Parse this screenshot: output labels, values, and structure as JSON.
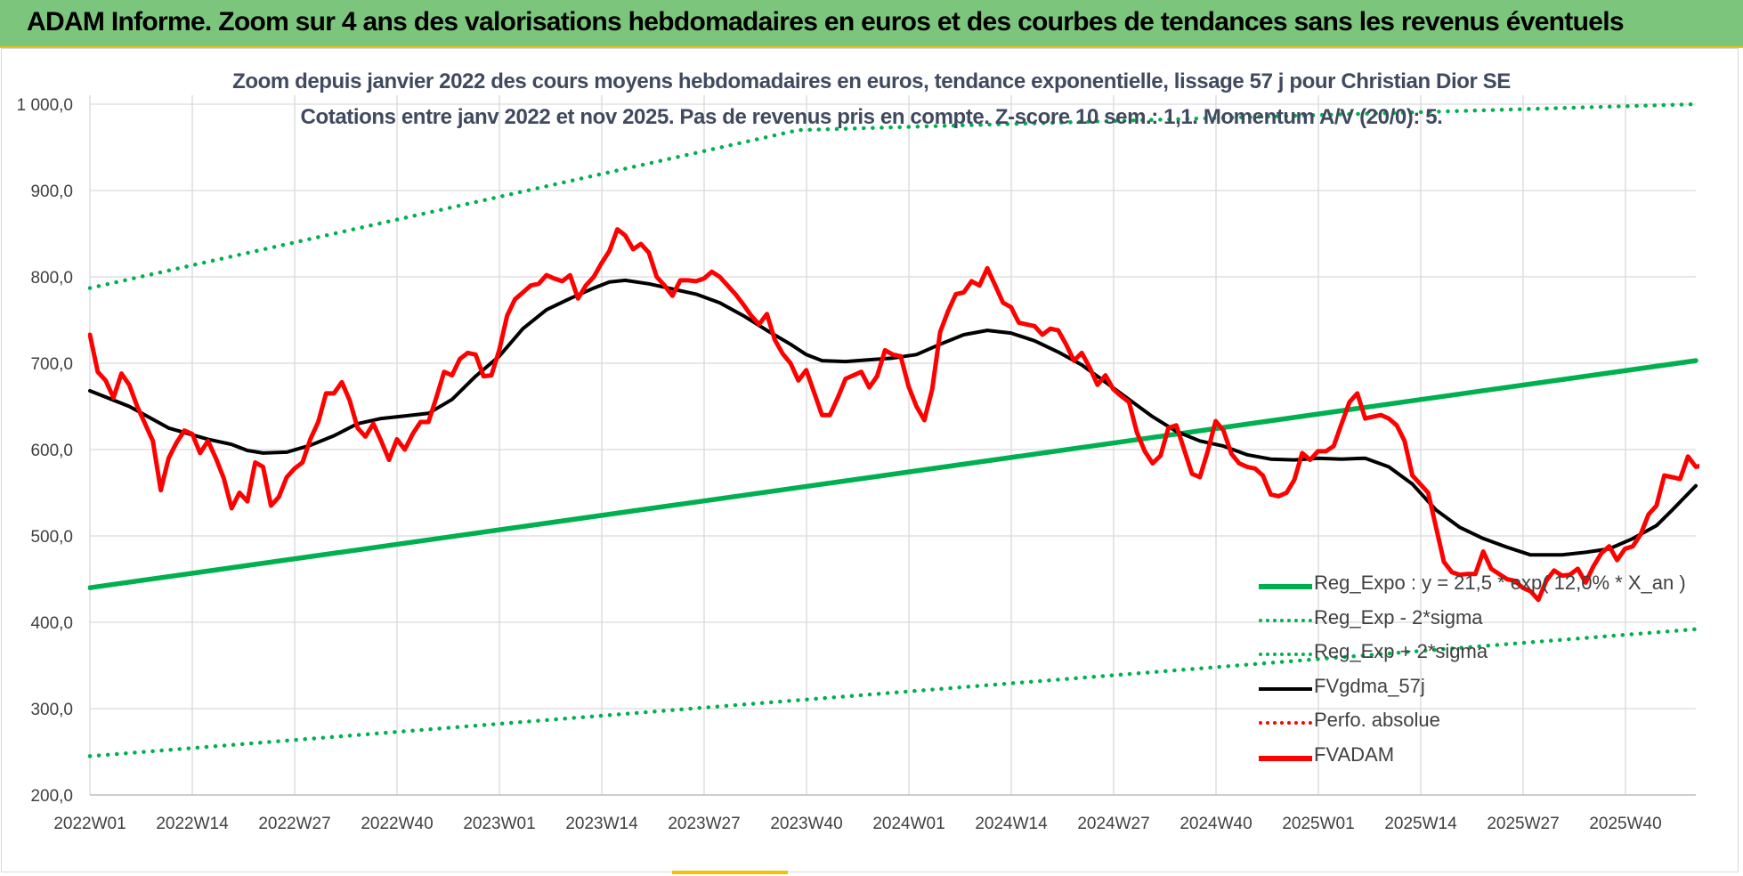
{
  "header": {
    "banner_title": "ADAM Informe. Zoom sur 4 ans des valorisations hebdomadaires en euros et des courbes de tendances sans les revenus éventuels"
  },
  "chart_data": {
    "type": "line",
    "title": "Zoom depuis janvier 2022 des cours moyens hebdomadaires en euros, tendance exponentielle, lissage 57 j pour Christian Dior SE",
    "subtitle": "Cotations entre janv 2022 et nov 2025. Pas de revenus pris en compte. Z-score 10 sem.: 1,1. Momentum A/V (20/0): 5.",
    "xlabel": "",
    "ylabel": "",
    "ylim": [
      200,
      1000
    ],
    "y_ticks": [
      "200,0",
      "300,0",
      "400,0",
      "500,0",
      "600,0",
      "700,0",
      "800,0",
      "900,0",
      "1 000,0"
    ],
    "x_tick_labels": [
      "2022W01",
      "2022W14",
      "2022W27",
      "2022W40",
      "2023W01",
      "2023W14",
      "2023W27",
      "2023W40",
      "2024W01",
      "2024W14",
      "2024W27",
      "2024W40",
      "2025W01",
      "2025W14",
      "2025W27",
      "2025W40"
    ],
    "x_range_weeks": [
      0,
      204
    ],
    "grid": true,
    "legend_position": "bottom-right",
    "series": [
      {
        "name": "Reg_Expo : y = 21,5 * exp( 12,0% *  X_an )",
        "color": "#00b050",
        "style": "solid",
        "points": [
          [
            0,
            440
          ],
          [
            204,
            703
          ]
        ]
      },
      {
        "name": "Reg_Exp - 2*sigma",
        "color": "#00b050",
        "style": "dotted",
        "points": [
          [
            0,
            245
          ],
          [
            204,
            392
          ]
        ]
      },
      {
        "name": "Reg_Exp + 2*sigma",
        "color": "#00b050",
        "style": "dotted",
        "points": [
          [
            0,
            787
          ],
          [
            90,
            970
          ],
          [
            204,
            1000
          ]
        ]
      },
      {
        "name": "FVgdma_57j",
        "color": "#000000",
        "style": "solid",
        "points": [
          [
            0,
            668
          ],
          [
            5,
            650
          ],
          [
            10,
            625
          ],
          [
            15,
            612
          ],
          [
            18,
            606
          ],
          [
            20,
            599
          ],
          [
            22,
            596
          ],
          [
            25,
            597
          ],
          [
            28,
            605
          ],
          [
            31,
            616
          ],
          [
            34,
            630
          ],
          [
            37,
            636
          ],
          [
            40,
            639
          ],
          [
            43,
            642
          ],
          [
            46,
            658
          ],
          [
            49,
            685
          ],
          [
            52,
            708
          ],
          [
            55,
            740
          ],
          [
            58,
            762
          ],
          [
            61,
            775
          ],
          [
            64,
            787
          ],
          [
            66,
            794
          ],
          [
            68,
            796
          ],
          [
            71,
            792
          ],
          [
            74,
            786
          ],
          [
            77,
            780
          ],
          [
            80,
            770
          ],
          [
            83,
            755
          ],
          [
            86,
            738
          ],
          [
            89,
            722
          ],
          [
            91,
            710
          ],
          [
            93,
            703
          ],
          [
            96,
            702
          ],
          [
            99,
            704
          ],
          [
            102,
            706
          ],
          [
            105,
            710
          ],
          [
            108,
            722
          ],
          [
            111,
            733
          ],
          [
            114,
            738
          ],
          [
            117,
            735
          ],
          [
            120,
            726
          ],
          [
            123,
            713
          ],
          [
            126,
            698
          ],
          [
            129,
            678
          ],
          [
            132,
            658
          ],
          [
            135,
            638
          ],
          [
            138,
            621
          ],
          [
            141,
            610
          ],
          [
            144,
            604
          ],
          [
            147,
            594
          ],
          [
            150,
            589
          ],
          [
            153,
            588
          ],
          [
            156,
            590
          ],
          [
            159,
            589
          ],
          [
            162,
            590
          ],
          [
            165,
            580
          ],
          [
            168,
            560
          ],
          [
            171,
            530
          ],
          [
            174,
            510
          ],
          [
            177,
            497
          ],
          [
            180,
            487
          ],
          [
            183,
            478
          ],
          [
            187,
            478
          ],
          [
            190,
            481
          ],
          [
            193,
            485
          ],
          [
            196,
            497
          ],
          [
            199,
            512
          ],
          [
            201,
            530
          ],
          [
            204,
            558
          ]
        ]
      },
      {
        "name": "Perfo. absolue",
        "color": "#ff0000",
        "style": "dotted",
        "points": []
      },
      {
        "name": "FVADAM",
        "color": "#ff0000",
        "style": "solid",
        "points": [
          [
            0,
            733
          ],
          [
            1,
            690
          ],
          [
            2,
            680
          ],
          [
            3,
            660
          ],
          [
            4,
            688
          ],
          [
            5,
            675
          ],
          [
            6,
            650
          ],
          [
            7,
            630
          ],
          [
            8,
            610
          ],
          [
            9,
            553
          ],
          [
            10,
            590
          ],
          [
            11,
            608
          ],
          [
            12,
            622
          ],
          [
            13,
            618
          ],
          [
            14,
            596
          ],
          [
            15,
            610
          ],
          [
            16,
            590
          ],
          [
            17,
            567
          ],
          [
            18,
            532
          ],
          [
            19,
            550
          ],
          [
            20,
            540
          ],
          [
            21,
            585
          ],
          [
            22,
            580
          ],
          [
            23,
            535
          ],
          [
            24,
            545
          ],
          [
            25,
            568
          ],
          [
            26,
            578
          ],
          [
            27,
            585
          ],
          [
            28,
            612
          ],
          [
            29,
            632
          ],
          [
            30,
            665
          ],
          [
            31,
            665
          ],
          [
            32,
            678
          ],
          [
            33,
            657
          ],
          [
            34,
            625
          ],
          [
            35,
            615
          ],
          [
            36,
            630
          ],
          [
            37,
            610
          ],
          [
            38,
            588
          ],
          [
            39,
            612
          ],
          [
            40,
            600
          ],
          [
            41,
            618
          ],
          [
            42,
            632
          ],
          [
            43,
            632
          ],
          [
            44,
            660
          ],
          [
            45,
            690
          ],
          [
            46,
            686
          ],
          [
            47,
            705
          ],
          [
            48,
            712
          ],
          [
            49,
            710
          ],
          [
            50,
            685
          ],
          [
            51,
            686
          ],
          [
            52,
            715
          ],
          [
            53,
            755
          ],
          [
            54,
            774
          ],
          [
            55,
            782
          ],
          [
            56,
            790
          ],
          [
            57,
            792
          ],
          [
            58,
            802
          ],
          [
            59,
            798
          ],
          [
            60,
            795
          ],
          [
            61,
            802
          ],
          [
            62,
            775
          ],
          [
            63,
            790
          ],
          [
            64,
            800
          ],
          [
            65,
            816
          ],
          [
            66,
            830
          ],
          [
            67,
            855
          ],
          [
            68,
            848
          ],
          [
            69,
            832
          ],
          [
            70,
            838
          ],
          [
            71,
            828
          ],
          [
            72,
            800
          ],
          [
            73,
            790
          ],
          [
            74,
            778
          ],
          [
            75,
            796
          ],
          [
            76,
            796
          ],
          [
            77,
            795
          ],
          [
            78,
            798
          ],
          [
            79,
            806
          ],
          [
            80,
            800
          ],
          [
            81,
            790
          ],
          [
            82,
            780
          ],
          [
            83,
            768
          ],
          [
            84,
            755
          ],
          [
            85,
            745
          ],
          [
            86,
            757
          ],
          [
            87,
            727
          ],
          [
            88,
            711
          ],
          [
            89,
            700
          ],
          [
            90,
            680
          ],
          [
            91,
            692
          ],
          [
            92,
            666
          ],
          [
            93,
            640
          ],
          [
            94,
            640
          ],
          [
            95,
            660
          ],
          [
            96,
            682
          ],
          [
            97,
            686
          ],
          [
            98,
            690
          ],
          [
            99,
            672
          ],
          [
            100,
            685
          ],
          [
            101,
            715
          ],
          [
            102,
            710
          ],
          [
            103,
            708
          ],
          [
            104,
            673
          ],
          [
            105,
            650
          ],
          [
            106,
            634
          ],
          [
            107,
            670
          ],
          [
            108,
            736
          ],
          [
            109,
            760
          ],
          [
            110,
            780
          ],
          [
            111,
            782
          ],
          [
            112,
            795
          ],
          [
            113,
            790
          ],
          [
            114,
            810
          ],
          [
            115,
            790
          ],
          [
            116,
            770
          ],
          [
            117,
            765
          ],
          [
            118,
            747
          ],
          [
            119,
            745
          ],
          [
            120,
            743
          ],
          [
            121,
            733
          ],
          [
            122,
            740
          ],
          [
            123,
            738
          ],
          [
            124,
            722
          ],
          [
            125,
            703
          ],
          [
            126,
            712
          ],
          [
            127,
            695
          ],
          [
            128,
            675
          ],
          [
            129,
            686
          ],
          [
            130,
            670
          ],
          [
            131,
            662
          ],
          [
            132,
            655
          ],
          [
            133,
            620
          ],
          [
            134,
            598
          ],
          [
            135,
            584
          ],
          [
            136,
            593
          ],
          [
            137,
            625
          ],
          [
            138,
            628
          ],
          [
            139,
            600
          ],
          [
            140,
            572
          ],
          [
            141,
            568
          ],
          [
            142,
            598
          ],
          [
            143,
            633
          ],
          [
            144,
            622
          ],
          [
            145,
            595
          ],
          [
            146,
            584
          ],
          [
            147,
            580
          ],
          [
            148,
            578
          ],
          [
            149,
            570
          ],
          [
            150,
            548
          ],
          [
            151,
            546
          ],
          [
            152,
            550
          ],
          [
            153,
            565
          ],
          [
            154,
            596
          ],
          [
            155,
            588
          ],
          [
            156,
            598
          ],
          [
            157,
            598
          ],
          [
            158,
            604
          ],
          [
            159,
            630
          ],
          [
            160,
            655
          ],
          [
            161,
            665
          ],
          [
            162,
            636
          ],
          [
            163,
            638
          ],
          [
            164,
            640
          ],
          [
            165,
            636
          ],
          [
            166,
            628
          ],
          [
            167,
            610
          ],
          [
            168,
            570
          ],
          [
            169,
            560
          ],
          [
            170,
            550
          ],
          [
            171,
            510
          ],
          [
            172,
            470
          ],
          [
            173,
            458
          ],
          [
            174,
            455
          ],
          [
            175,
            456
          ],
          [
            176,
            456
          ],
          [
            177,
            482
          ],
          [
            178,
            462
          ],
          [
            179,
            456
          ],
          [
            180,
            450
          ],
          [
            181,
            448
          ],
          [
            182,
            440
          ],
          [
            183,
            436
          ],
          [
            184,
            426
          ],
          [
            185,
            448
          ],
          [
            186,
            460
          ],
          [
            187,
            454
          ],
          [
            188,
            455
          ],
          [
            189,
            462
          ],
          [
            190,
            446
          ],
          [
            191,
            465
          ],
          [
            192,
            480
          ],
          [
            193,
            488
          ],
          [
            194,
            472
          ],
          [
            195,
            485
          ],
          [
            196,
            488
          ],
          [
            197,
            502
          ],
          [
            198,
            525
          ],
          [
            199,
            535
          ],
          [
            200,
            570
          ],
          [
            201,
            568
          ],
          [
            202,
            566
          ],
          [
            203,
            592
          ],
          [
            204,
            580
          ],
          [
            205,
            582
          ]
        ]
      }
    ]
  }
}
